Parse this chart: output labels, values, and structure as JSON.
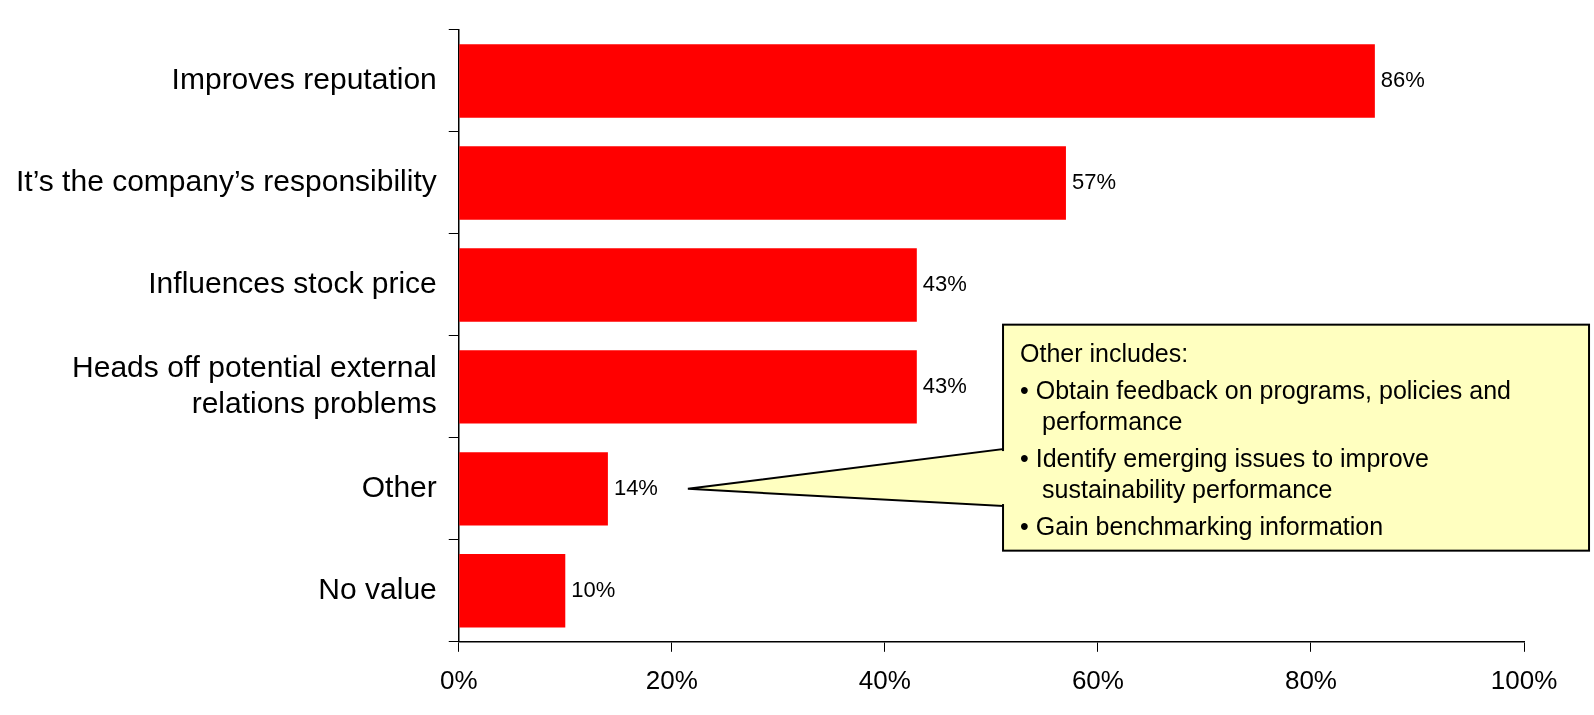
{
  "chart_data": {
    "type": "bar",
    "orientation": "horizontal",
    "categories": [
      "Improves reputation",
      "It’s the company’s responsibility",
      "Influences stock price",
      "Heads off potential external relations problems",
      "Other",
      "No value"
    ],
    "values": [
      86,
      57,
      43,
      43,
      14,
      10
    ],
    "value_labels": [
      "86%",
      "57%",
      "43%",
      "43%",
      "14%",
      "10%"
    ],
    "color": "#ff0000",
    "xlim": [
      0,
      100
    ],
    "xticks": [
      {
        "value": 0,
        "label": "0%"
      },
      {
        "value": 20,
        "label": "20%"
      },
      {
        "value": 40,
        "label": "40%"
      },
      {
        "value": 60,
        "label": "60%"
      },
      {
        "value": 80,
        "label": "80%"
      },
      {
        "value": 100,
        "label": "100%"
      }
    ],
    "grid": false,
    "legend": false,
    "annotations": [
      "Other includes:",
      "• Obtain feedback on programs, policies and performance",
      "• Identify emerging issues to improve sustainability performance",
      "• Gain benchmarking information"
    ]
  }
}
